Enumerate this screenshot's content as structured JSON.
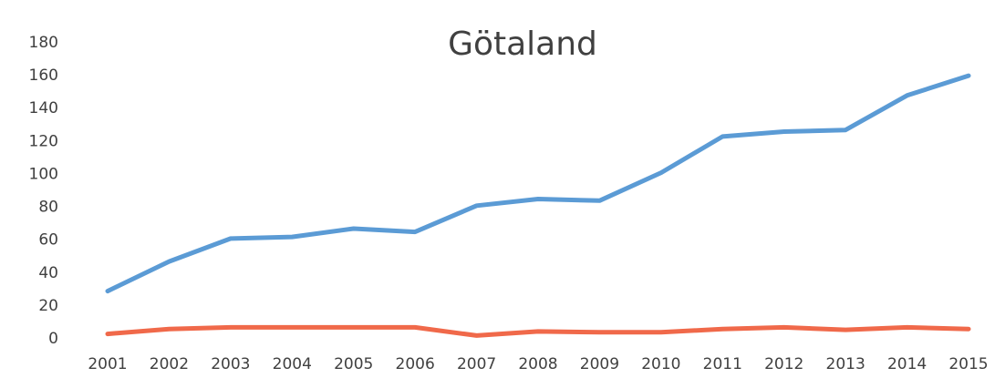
{
  "chart_data": {
    "type": "line",
    "title": "Götaland",
    "categories": [
      "2001",
      "2002",
      "2003",
      "2004",
      "2005",
      "2006",
      "2007",
      "2008",
      "2009",
      "2010",
      "2011",
      "2012",
      "2013",
      "2014",
      "2015"
    ],
    "series": [
      {
        "color": "#5b9bd5",
        "values": [
          29,
          47,
          61,
          62,
          67,
          65,
          81,
          85,
          84,
          101,
          123,
          126,
          127,
          148,
          160
        ]
      },
      {
        "color": "#f0694a",
        "values": [
          3,
          6,
          7,
          7,
          7,
          7,
          2,
          4.5,
          4,
          4,
          6,
          7,
          5.5,
          7,
          6
        ]
      }
    ],
    "ylim": [
      0,
      180
    ],
    "yticks": [
      0,
      20,
      40,
      60,
      80,
      100,
      120,
      140,
      160,
      180
    ],
    "grid": false
  }
}
